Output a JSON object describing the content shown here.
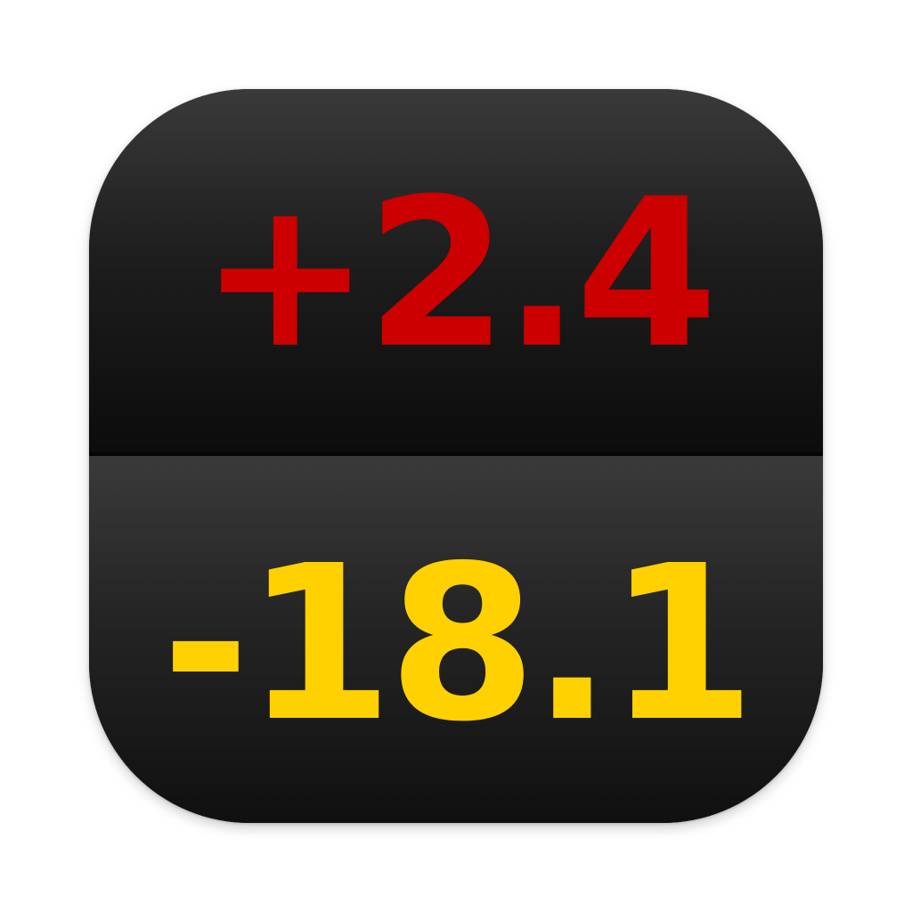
{
  "icon": {
    "top_value": "+2.4",
    "bottom_value": "-18.1"
  },
  "colors": {
    "top_value": "#cc0000",
    "bottom_value": "#ffd100",
    "panel": "#1a1a1a"
  }
}
